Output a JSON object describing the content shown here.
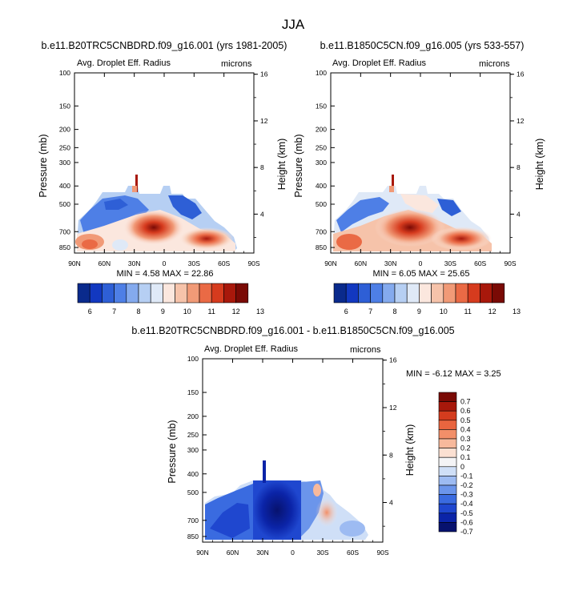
{
  "page_title": "JJA",
  "colors": {
    "palette13": [
      "#0a2a8c",
      "#1238c0",
      "#2e5fd6",
      "#4e7fe6",
      "#84aaee",
      "#b6cff3",
      "#dfe9f7",
      "#fbe7de",
      "#f6c3aa",
      "#f19a77",
      "#ea6a45",
      "#d63b1e",
      "#a8180b",
      "#7a0a05"
    ],
    "diff": [
      "#07126e",
      "#0b24a8",
      "#1f47cf",
      "#3a6be0",
      "#6b95eb",
      "#9dbbf2",
      "#cfdff7",
      "#f4f4f6",
      "#fbe0d2",
      "#f7b99c",
      "#f28f69",
      "#e9653f",
      "#d43c1e",
      "#a8180b",
      "#7a0a05"
    ]
  },
  "panels": [
    {
      "id": "left",
      "title": "b.e11.B20TRC5CNBDRD.f09_g16.001 (yrs 1981-2005)",
      "subtitle_left": "Avg. Droplet Eff. Radius",
      "subtitle_right": "microns",
      "ylabel": "Pressure (mb)",
      "ylabel_right": "Height (km)",
      "stats": "MIN =   4.58   MAX =  22.86"
    },
    {
      "id": "right",
      "title": "b.e11.B1850C5CN.f09_g16.005 (yrs 533-557)",
      "subtitle_left": "Avg. Droplet Eff. Radius",
      "subtitle_right": "microns",
      "ylabel": "Pressure (mb)",
      "ylabel_right": "Height (km)",
      "stats": "MIN =   6.05   MAX =  25.65"
    },
    {
      "id": "diff",
      "title": "b.e11.B20TRC5CNBDRD.f09_g16.001 - b.e11.B1850C5CN.f09_g16.005",
      "subtitle_left": "Avg. Droplet Eff. Radius",
      "subtitle_right": "microns",
      "ylabel": "Pressure (mb)",
      "ylabel_right": "Height (km)",
      "stats": "MIN =  -6.12   MAX =   3.25"
    }
  ],
  "chart_data": [
    {
      "type": "heatmap",
      "title": "b.e11.B20TRC5CNBDRD.f09_g16.001 (yrs 1981-2005)",
      "variable": "Avg. Droplet Eff. Radius",
      "units": "microns",
      "xlabel": "",
      "ylabel": "Pressure (mb)",
      "ylabel_right": "Height (km)",
      "x_ticks": [
        "90N",
        "60N",
        "30N",
        "0",
        "30S",
        "60S",
        "90S"
      ],
      "y_ticks": [
        "100",
        "150",
        "200",
        "250",
        "300",
        "400",
        "500",
        "700",
        "850"
      ],
      "y_right_ticks": [
        "16",
        "12",
        "8",
        "4"
      ],
      "colorbar_labels": [
        "6",
        "7",
        "8",
        "9",
        "10",
        "11",
        "12",
        "13"
      ],
      "min": 4.58,
      "max": 22.86
    },
    {
      "type": "heatmap",
      "title": "b.e11.B1850C5CN.f09_g16.005 (yrs 533-557)",
      "variable": "Avg. Droplet Eff. Radius",
      "units": "microns",
      "xlabel": "",
      "ylabel": "Pressure (mb)",
      "ylabel_right": "Height (km)",
      "x_ticks": [
        "90N",
        "60N",
        "30N",
        "0",
        "30S",
        "60S",
        "90S"
      ],
      "y_ticks": [
        "100",
        "150",
        "200",
        "250",
        "300",
        "400",
        "500",
        "700",
        "850"
      ],
      "y_right_ticks": [
        "16",
        "12",
        "8",
        "4"
      ],
      "colorbar_labels": [
        "6",
        "7",
        "8",
        "9",
        "10",
        "11",
        "12",
        "13"
      ],
      "min": 6.05,
      "max": 25.65
    },
    {
      "type": "heatmap",
      "title": "b.e11.B20TRC5CNBDRD.f09_g16.001 - b.e11.B1850C5CN.f09_g16.005",
      "variable": "Avg. Droplet Eff. Radius",
      "units": "microns",
      "xlabel": "",
      "ylabel": "Pressure (mb)",
      "ylabel_right": "Height (km)",
      "x_ticks": [
        "90N",
        "60N",
        "30N",
        "0",
        "30S",
        "60S",
        "90S"
      ],
      "y_ticks": [
        "100",
        "150",
        "200",
        "250",
        "300",
        "400",
        "500",
        "700",
        "850"
      ],
      "y_right_ticks": [
        "16",
        "12",
        "8",
        "4"
      ],
      "colorbar_labels": [
        "0.7",
        "0.6",
        "0.5",
        "0.4",
        "0.3",
        "0.2",
        "0.1",
        "0",
        "-0.1",
        "-0.2",
        "-0.3",
        "-0.4",
        "-0.5",
        "-0.6",
        "-0.7"
      ],
      "min": -6.12,
      "max": 3.25
    }
  ]
}
